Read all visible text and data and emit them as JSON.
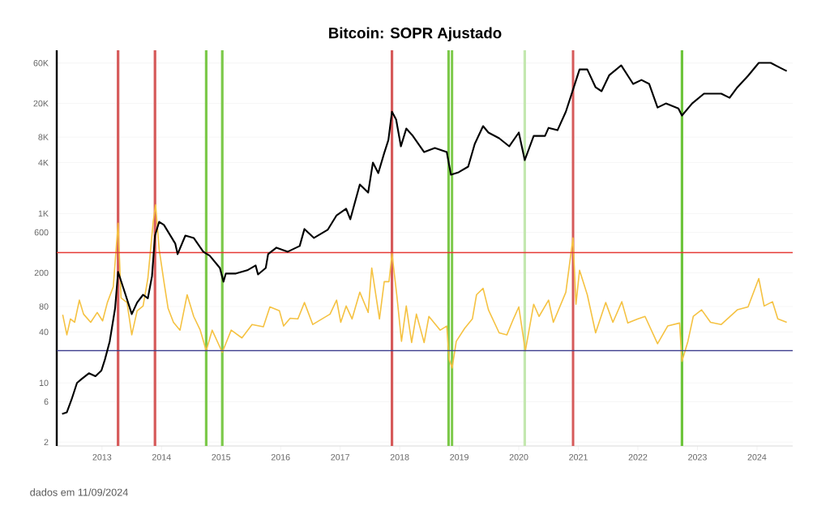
{
  "chart_data": {
    "type": "line",
    "title": "Bitcoin: SOPR Ajustado",
    "annotations": [
      "dados em 11/09/2024"
    ],
    "log": "y",
    "grid": "y",
    "xlim": [
      2012.24,
      2024.6
    ],
    "ylim": [
      1.8,
      85000
    ],
    "xticks": [
      2013,
      2014,
      2015,
      2016,
      2017,
      2018,
      2019,
      2020,
      2021,
      2022,
      2023,
      2024
    ],
    "yticks": [
      2,
      6,
      10,
      40,
      80,
      200,
      600,
      {
        "value": 1000,
        "label": "1K"
      },
      {
        "value": 4000,
        "label": "4K"
      },
      {
        "value": 8000,
        "label": "8K"
      },
      {
        "value": 20000,
        "label": "20K"
      },
      {
        "value": 60000,
        "label": "60K"
      }
    ],
    "ref_lines": [
      {
        "axis": "x",
        "value": 2013.27,
        "color": "#d65a5a"
      },
      {
        "axis": "x",
        "value": 2013.89,
        "color": "#d65a5a"
      },
      {
        "axis": "x",
        "value": 2017.87,
        "color": "#d65a5a"
      },
      {
        "axis": "x",
        "value": 2020.91,
        "color": "#d65a5a"
      },
      {
        "axis": "x",
        "value": 2014.75,
        "color": "#7cc94a"
      },
      {
        "axis": "x",
        "value": 2015.02,
        "color": "#7cc94a"
      },
      {
        "axis": "x",
        "value": 2018.82,
        "color": "#7cc94a"
      },
      {
        "axis": "x",
        "value": 2018.88,
        "color": "#7cc94a"
      },
      {
        "axis": "x",
        "value": 2020.1,
        "color": "#c4e8b0"
      },
      {
        "axis": "x",
        "value": 2022.74,
        "color": "#6cc43a"
      },
      {
        "axis": "y",
        "value": 347,
        "color": "#e53935"
      },
      {
        "axis": "y",
        "value": 24,
        "color": "#3b3b8c"
      }
    ],
    "series": [
      {
        "color": "#f5c242",
        "x": [
          2012.34,
          2012.41,
          2012.47,
          2012.54,
          2012.62,
          2012.69,
          2012.81,
          2012.92,
          2013.01,
          2013.09,
          2013.19,
          2013.27,
          2013.32,
          2013.42,
          2013.5,
          2013.59,
          2013.69,
          2013.77,
          2013.86,
          2013.9,
          2013.96,
          2014.04,
          2014.11,
          2014.2,
          2014.31,
          2014.43,
          2014.54,
          2014.65,
          2014.75,
          2014.85,
          2015.02,
          2015.17,
          2015.35,
          2015.52,
          2015.71,
          2015.82,
          2015.98,
          2016.05,
          2016.16,
          2016.29,
          2016.4,
          2016.54,
          2016.83,
          2016.94,
          2017.01,
          2017.1,
          2017.2,
          2017.33,
          2017.47,
          2017.53,
          2017.66,
          2017.74,
          2017.82,
          2017.87,
          2017.95,
          2018.03,
          2018.11,
          2018.2,
          2018.28,
          2018.41,
          2018.49,
          2018.68,
          2018.79,
          2018.83,
          2018.88,
          2018.95,
          2019.09,
          2019.22,
          2019.29,
          2019.4,
          2019.49,
          2019.67,
          2019.8,
          2019.91,
          2020.0,
          2020.11,
          2020.25,
          2020.34,
          2020.5,
          2020.58,
          2020.79,
          2020.91,
          2020.96,
          2021.02,
          2021.15,
          2021.29,
          2021.46,
          2021.58,
          2021.73,
          2021.83,
          2022.0,
          2022.12,
          2022.33,
          2022.5,
          2022.7,
          2022.74,
          2022.84,
          2022.93,
          2023.07,
          2023.22,
          2023.4,
          2023.67,
          2023.85,
          2024.03,
          2024.12,
          2024.26,
          2024.35,
          2024.5
        ],
        "values": [
          64,
          37,
          57,
          52,
          95,
          65,
          52,
          68,
          54,
          89,
          137,
          768,
          101,
          89,
          37,
          71,
          81,
          171,
          802,
          1270,
          379,
          157,
          76,
          52,
          42,
          110,
          61,
          42,
          24,
          42,
          23,
          42,
          34,
          49,
          46,
          79,
          71,
          47,
          58,
          57,
          89,
          49,
          65,
          95,
          52,
          81,
          57,
          118,
          68,
          228,
          57,
          157,
          157,
          340,
          110,
          31,
          81,
          30,
          65,
          30,
          61,
          42,
          47,
          19,
          15,
          31,
          44,
          57,
          110,
          131,
          73,
          39,
          37,
          57,
          79,
          24,
          85,
          61,
          95,
          52,
          118,
          516,
          85,
          214,
          110,
          39,
          89,
          52,
          91,
          51,
          57,
          61,
          29,
          47,
          51,
          18,
          31,
          61,
          73,
          52,
          49,
          73,
          79,
          171,
          81,
          91,
          57,
          52
        ]
      },
      {
        "color": "#000000",
        "x": [
          2012.33,
          2012.41,
          2012.49,
          2012.58,
          2012.65,
          2012.78,
          2012.89,
          2012.99,
          2013.05,
          2013.13,
          2013.22,
          2013.27,
          2013.39,
          2013.5,
          2013.59,
          2013.69,
          2013.77,
          2013.84,
          2013.89,
          2013.96,
          2014.04,
          2014.23,
          2014.27,
          2014.4,
          2014.54,
          2014.7,
          2014.81,
          2014.98,
          2015.04,
          2015.08,
          2015.25,
          2015.44,
          2015.58,
          2015.62,
          2015.75,
          2015.79,
          2015.93,
          2016.12,
          2016.32,
          2016.4,
          2016.56,
          2016.79,
          2016.94,
          2017.1,
          2017.17,
          2017.33,
          2017.47,
          2017.55,
          2017.64,
          2017.74,
          2017.81,
          2017.87,
          2017.94,
          2018.02,
          2018.11,
          2018.22,
          2018.41,
          2018.59,
          2018.79,
          2018.86,
          2018.99,
          2019.15,
          2019.26,
          2019.4,
          2019.49,
          2019.67,
          2019.84,
          2020.0,
          2020.1,
          2020.25,
          2020.44,
          2020.5,
          2020.65,
          2020.79,
          2020.91,
          2021.02,
          2021.15,
          2021.29,
          2021.39,
          2021.52,
          2021.72,
          2021.92,
          2022.06,
          2022.19,
          2022.33,
          2022.47,
          2022.68,
          2022.74,
          2022.91,
          2023.11,
          2023.4,
          2023.54,
          2023.67,
          2023.85,
          2024.03,
          2024.23,
          2024.39,
          2024.5
        ],
        "values": [
          4.3,
          4.5,
          6.4,
          10,
          11,
          13,
          12,
          14,
          19,
          31,
          76,
          205,
          113,
          65,
          89,
          110,
          100,
          183,
          550,
          800,
          735,
          443,
          332,
          550,
          516,
          355,
          318,
          228,
          157,
          196,
          196,
          214,
          244,
          191,
          228,
          332,
          396,
          355,
          414,
          658,
          516,
          643,
          955,
          1140,
          857,
          2210,
          1770,
          4010,
          3010,
          5210,
          7410,
          16000,
          12900,
          6230,
          10100,
          8280,
          5330,
          5960,
          5330,
          2880,
          3080,
          3590,
          6650,
          10800,
          9060,
          7760,
          6230,
          9060,
          4280,
          8280,
          8280,
          10300,
          9660,
          16000,
          29100,
          50500,
          50500,
          31000,
          27900,
          43300,
          56400,
          34000,
          37900,
          34000,
          17900,
          20000,
          17500,
          14400,
          20000,
          26100,
          26100,
          23300,
          31000,
          42400,
          60300,
          60300,
          52700,
          48300
        ]
      }
    ]
  }
}
